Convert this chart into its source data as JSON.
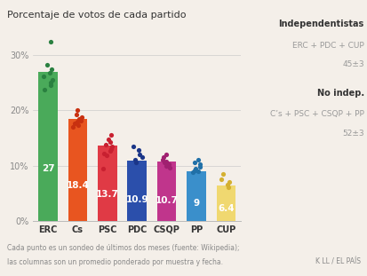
{
  "title": "Porcentaje de votos de cada partido",
  "categories": [
    "ERC",
    "Cs",
    "PSC",
    "PDC",
    "CSQP",
    "PP",
    "CUP"
  ],
  "values": [
    27,
    18.4,
    13.7,
    10.9,
    10.7,
    9,
    6.4
  ],
  "bar_colors": [
    "#4aaa5a",
    "#e85520",
    "#e03a45",
    "#2b4fab",
    "#c0358c",
    "#3a8fcb",
    "#f0d870"
  ],
  "dot_colors": [
    "#2a8040",
    "#c83010",
    "#c82030",
    "#1a3588",
    "#a02070",
    "#2070a8",
    "#d4b030"
  ],
  "ylim": [
    0,
    34
  ],
  "yticks": [
    0,
    10,
    20,
    30
  ],
  "ytick_labels": [
    "0%",
    "10%",
    "20%",
    "30%"
  ],
  "value_labels": [
    "27",
    "18.4",
    "13.7",
    "10.9",
    "10.7",
    "9",
    "6.4"
  ],
  "footnote1": "Cada punto es un sondeo de últimos dos meses (fuente: Wikipedia);",
  "footnote2": "las columnas son un promedio ponderado por muestra y fecha.",
  "credit": "K LL / EL PAÍS",
  "annotation1_bold": "Independentistas",
  "annotation1_sub": "ERC + PDC + CUP\n45±3",
  "annotation2_bold": "No indep.",
  "annotation2_sub": "C’s + PSC + CSQP + PP\n52±3",
  "dot_data": {
    "ERC": [
      32.5,
      28.2,
      27.5,
      26.8,
      26.2,
      25.6,
      25.0,
      24.5,
      23.8
    ],
    "Cs": [
      20.0,
      19.3,
      18.8,
      18.5,
      18.2,
      17.9,
      17.6,
      17.3,
      17.0
    ],
    "PSC": [
      15.5,
      14.8,
      14.3,
      13.8,
      13.4,
      13.0,
      12.6,
      12.2,
      11.8,
      9.5
    ],
    "PDC": [
      13.5,
      12.8,
      12.0,
      11.5,
      11.0,
      10.5
    ],
    "CSQP": [
      12.0,
      11.5,
      11.0,
      10.8,
      10.5,
      10.3,
      10.0,
      9.6
    ],
    "PP": [
      11.0,
      10.5,
      10.2,
      9.8,
      9.5,
      9.2,
      9.0,
      8.8
    ],
    "CUP": [
      8.5,
      7.5,
      7.0,
      6.5,
      6.0
    ]
  },
  "background_color": "#f4efe9"
}
